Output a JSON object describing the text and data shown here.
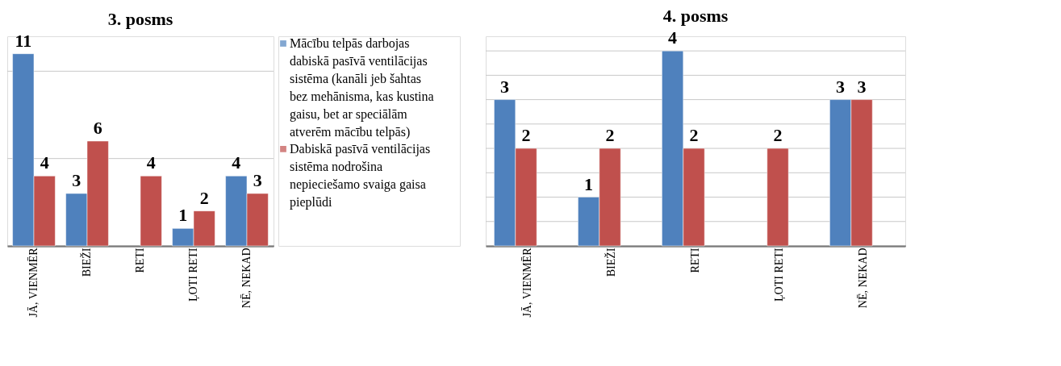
{
  "chart_data": [
    {
      "type": "bar",
      "title": "3. posms",
      "categories": [
        "JĀ, VIENMĒR",
        "BIEŽI",
        "RETI",
        "ĻOTI RETI",
        "NĒ, NEKAD"
      ],
      "series": [
        {
          "name": "Mācību telpās darbojas dabiskā pasīvā ventilācijas sistēma (kanāli jeb šahtas bez mehānisma, kas kustina gaisu, bet ar speciālām atverēm mācību telpās)",
          "color": "#4f81bd",
          "values": [
            11,
            3,
            null,
            1,
            4
          ]
        },
        {
          "name": "Dabiskā pasīvā ventilācijas sistēma nodrošina nepieciešamo svaiga gaisa pieplūdi",
          "color": "#c0504d",
          "values": [
            4,
            6,
            4,
            2,
            3
          ]
        }
      ],
      "ylim": [
        0,
        12
      ],
      "yticks": [
        {
          "value": 0,
          "label": null
        },
        {
          "value": 5,
          "label": null
        },
        {
          "value": 10,
          "label": null
        }
      ],
      "tick_labels": "x",
      "grid": "y",
      "legend": "right",
      "data_labels": true
    },
    {
      "type": "bar",
      "title": "4. posms",
      "categories": [
        "JĀ, VIENMĒR",
        "BIEŽI",
        "RETI",
        "ĻOTI RETI",
        "NĒ, NEKAD"
      ],
      "series": [
        {
          "color": "#4f81bd",
          "values": [
            3,
            1,
            4,
            null,
            3
          ]
        },
        {
          "color": "#c0504d",
          "values": [
            2,
            2,
            2,
            2,
            3
          ]
        }
      ],
      "ylim": [
        0,
        4.3
      ],
      "yticks": [
        {
          "value": 0,
          "label": null
        },
        {
          "value": 0.5,
          "label": null
        },
        {
          "value": 1,
          "label": null
        },
        {
          "value": 1.5,
          "label": null
        },
        {
          "value": 2,
          "label": null
        },
        {
          "value": 2.5,
          "label": null
        },
        {
          "value": 3,
          "label": null
        },
        {
          "value": 3.5,
          "label": null
        },
        {
          "value": 4,
          "label": null
        }
      ],
      "tick_labels": "x",
      "grid": "y",
      "legend": false,
      "data_labels": true
    }
  ]
}
